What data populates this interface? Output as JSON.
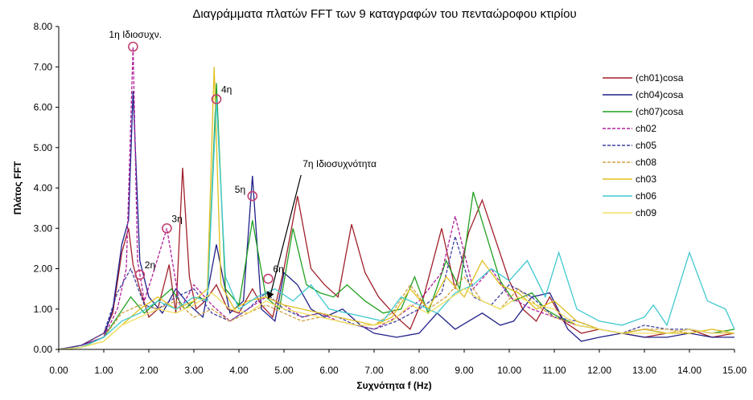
{
  "chart_data": {
    "type": "line",
    "title": "Διαγράμματα πλατών FFT των 9 καταγραφών του πενταώροφου κτιρίου",
    "xlabel": "Συχνότητα f (Hz)",
    "ylabel": "Πλάτος FFT",
    "xlim": [
      0,
      15
    ],
    "ylim": [
      0,
      8
    ],
    "x_ticks": [
      "0.00",
      "1.00",
      "2.00",
      "3.00",
      "4.00",
      "5.00",
      "6.00",
      "7.00",
      "8.00",
      "9.00",
      "10.00",
      "11.00",
      "12.00",
      "13.00",
      "14.00",
      "15.00"
    ],
    "y_ticks": [
      "0.00",
      "1.00",
      "2.00",
      "3.00",
      "4.00",
      "5.00",
      "6.00",
      "7.00",
      "8.00"
    ],
    "grid": false,
    "legend_position": "right",
    "series": [
      {
        "name": "(ch01)cosa",
        "color": "#a0202a",
        "dash": "solid",
        "x": [
          0,
          0.5,
          1,
          1.2,
          1.4,
          1.55,
          1.65,
          1.8,
          2.0,
          2.2,
          2.45,
          2.6,
          2.75,
          2.9,
          3.05,
          3.25,
          3.5,
          3.75,
          4.0,
          4.3,
          4.5,
          4.75,
          5.0,
          5.3,
          5.6,
          5.9,
          6.2,
          6.5,
          6.8,
          7.1,
          7.5,
          7.8,
          8.1,
          8.5,
          8.8,
          9.1,
          9.4,
          9.7,
          10.0,
          10.3,
          10.6,
          10.9,
          11.2,
          11.6,
          12.0,
          12.5,
          13.0,
          13.5,
          14.0,
          14.5,
          15.0
        ],
        "y": [
          0,
          0.1,
          0.4,
          0.9,
          2.4,
          3.0,
          2.1,
          1.5,
          0.8,
          1.0,
          2.1,
          0.9,
          4.5,
          1.8,
          1.0,
          1.2,
          1.6,
          1.0,
          0.9,
          1.5,
          1.1,
          0.8,
          2.0,
          3.8,
          2.0,
          1.6,
          1.3,
          3.1,
          1.9,
          1.3,
          0.8,
          0.5,
          1.3,
          3.0,
          1.5,
          2.9,
          3.7,
          2.7,
          1.7,
          1.0,
          0.7,
          1.3,
          0.7,
          0.4,
          0.5,
          0.4,
          0.3,
          0.4,
          0.5,
          0.3,
          0.4
        ]
      },
      {
        "name": "(ch04)cosa",
        "color": "#20208a",
        "dash": "solid",
        "x": [
          0,
          0.5,
          1,
          1.2,
          1.4,
          1.55,
          1.65,
          1.8,
          2.0,
          2.3,
          2.6,
          2.9,
          3.2,
          3.5,
          3.8,
          4.1,
          4.3,
          4.5,
          4.8,
          5.0,
          5.3,
          5.6,
          5.9,
          6.3,
          6.7,
          7.0,
          7.5,
          8.0,
          8.4,
          8.8,
          9.1,
          9.4,
          9.8,
          10.1,
          10.5,
          10.9,
          11.3,
          11.6,
          12.0,
          12.5,
          13.0,
          13.5,
          14.0,
          14.5,
          15.0
        ],
        "y": [
          0,
          0.1,
          0.3,
          1.0,
          2.6,
          3.2,
          6.4,
          2.2,
          1.3,
          0.9,
          1.5,
          1.1,
          0.8,
          2.6,
          0.9,
          1.2,
          4.3,
          1.0,
          0.7,
          1.9,
          1.6,
          1.0,
          0.8,
          1.0,
          0.6,
          0.4,
          0.3,
          0.4,
          0.9,
          0.5,
          0.7,
          0.9,
          0.6,
          0.7,
          1.3,
          1.4,
          0.5,
          0.2,
          0.3,
          0.4,
          0.3,
          0.3,
          0.4,
          0.3,
          0.3
        ]
      },
      {
        "name": "(ch07)cosa",
        "color": "#20a020",
        "dash": "solid",
        "x": [
          0,
          0.5,
          1,
          1.3,
          1.6,
          1.9,
          2.2,
          2.5,
          2.8,
          3.1,
          3.3,
          3.5,
          3.7,
          4.0,
          4.3,
          4.6,
          4.9,
          5.2,
          5.5,
          5.8,
          6.1,
          6.4,
          6.8,
          7.2,
          7.6,
          7.9,
          8.2,
          8.6,
          8.9,
          9.2,
          9.5,
          9.8,
          10.1,
          10.5,
          10.8,
          11.1,
          11.5,
          12.0,
          12.5,
          13.0,
          13.5,
          14.0,
          14.5,
          15.0
        ],
        "y": [
          0,
          0.05,
          0.3,
          0.8,
          1.3,
          0.9,
          1.2,
          1.5,
          1.0,
          1.3,
          1.2,
          6.6,
          1.5,
          1.1,
          3.2,
          1.3,
          1.0,
          3.0,
          1.6,
          1.4,
          1.3,
          1.6,
          1.2,
          0.9,
          1.0,
          1.8,
          0.9,
          2.2,
          1.5,
          3.9,
          2.8,
          1.7,
          1.2,
          1.4,
          1.0,
          0.8,
          0.6,
          0.5,
          0.4,
          0.5,
          0.4,
          0.5,
          0.4,
          0.5
        ]
      },
      {
        "name": "ch02",
        "color": "#b0209a",
        "dash": "4,2",
        "x": [
          0,
          0.5,
          1,
          1.3,
          1.5,
          1.65,
          1.75,
          1.9,
          2.1,
          2.4,
          2.7,
          3.0,
          3.4,
          3.8,
          4.2,
          4.6,
          5.0,
          5.4,
          5.8,
          6.2,
          6.6,
          7.0,
          7.5,
          8.0,
          8.5,
          8.8,
          9.2,
          9.6,
          10.0,
          10.5,
          11.0,
          11.5,
          12.0,
          12.5,
          13.0,
          13.5,
          14.0,
          14.5,
          15.0
        ],
        "y": [
          0,
          0.1,
          0.3,
          1.0,
          2.0,
          7.5,
          2.2,
          1.2,
          1.9,
          3.0,
          1.0,
          1.6,
          1.1,
          0.7,
          1.0,
          1.3,
          1.1,
          0.8,
          0.9,
          0.7,
          0.6,
          0.5,
          0.8,
          1.2,
          1.9,
          3.3,
          1.5,
          2.0,
          1.3,
          1.0,
          0.8,
          0.6,
          0.5,
          0.4,
          0.5,
          0.4,
          0.5,
          0.4,
          0.4
        ]
      },
      {
        "name": "ch05",
        "color": "#4040a0",
        "dash": "4,2",
        "x": [
          0,
          0.5,
          1,
          1.3,
          1.6,
          1.9,
          2.2,
          2.6,
          3.0,
          3.4,
          3.8,
          4.2,
          4.6,
          5.0,
          5.4,
          5.8,
          6.2,
          6.6,
          7.0,
          7.5,
          8.0,
          8.5,
          8.8,
          9.2,
          9.6,
          10.0,
          10.5,
          11.0,
          11.5,
          12.0,
          12.5,
          13.0,
          13.5,
          14.0,
          14.5,
          15.0
        ],
        "y": [
          0,
          0.1,
          0.4,
          1.4,
          2.0,
          1.1,
          1.0,
          1.3,
          1.5,
          0.9,
          0.7,
          1.0,
          1.4,
          1.0,
          0.8,
          0.9,
          0.8,
          0.6,
          0.5,
          0.7,
          1.0,
          1.4,
          2.8,
          1.3,
          1.1,
          1.6,
          1.3,
          0.8,
          0.7,
          0.5,
          0.4,
          0.6,
          0.5,
          0.5,
          0.4,
          0.4
        ]
      },
      {
        "name": "ch08",
        "color": "#d0a040",
        "dash": "4,2",
        "x": [
          0,
          0.5,
          1,
          1.4,
          1.8,
          2.2,
          2.6,
          3.0,
          3.4,
          3.8,
          4.2,
          4.6,
          5.0,
          5.4,
          5.8,
          6.2,
          6.6,
          7.0,
          7.4,
          7.8,
          8.2,
          8.6,
          9.0,
          9.4,
          9.8,
          10.2,
          10.6,
          11.0,
          11.5,
          12.0,
          12.5,
          13.0,
          13.5,
          14.0,
          14.5,
          15.0
        ],
        "y": [
          0,
          0.05,
          0.3,
          0.9,
          1.1,
          1.0,
          1.2,
          0.8,
          1.0,
          0.7,
          0.9,
          1.1,
          0.9,
          0.7,
          0.8,
          0.7,
          0.6,
          0.6,
          0.9,
          1.6,
          1.0,
          1.3,
          1.8,
          1.2,
          1.0,
          1.5,
          1.1,
          0.8,
          0.6,
          0.5,
          0.4,
          0.5,
          0.5,
          0.4,
          0.5,
          0.4
        ]
      },
      {
        "name": "ch03",
        "color": "#e0c020",
        "dash": "solid",
        "x": [
          0,
          0.5,
          1,
          1.4,
          1.8,
          2.2,
          2.6,
          3.0,
          3.3,
          3.45,
          3.6,
          3.9,
          4.2,
          4.6,
          5.0,
          5.4,
          5.8,
          6.2,
          6.6,
          7.0,
          7.4,
          7.8,
          8.2,
          8.6,
          9.0,
          9.4,
          9.8,
          10.2,
          10.6,
          11.0,
          11.5,
          12.0,
          12.5,
          13.0,
          13.5,
          14.0,
          14.5,
          15.0
        ],
        "y": [
          0,
          0.05,
          0.2,
          0.6,
          1.0,
          1.3,
          1.0,
          1.2,
          1.5,
          7.0,
          1.6,
          1.0,
          1.2,
          1.3,
          1.1,
          1.0,
          0.9,
          0.8,
          0.7,
          0.6,
          0.8,
          1.5,
          1.0,
          1.8,
          1.3,
          2.2,
          1.6,
          1.4,
          1.0,
          1.2,
          0.7,
          0.5,
          0.4,
          0.5,
          0.4,
          0.4,
          0.5,
          0.4
        ]
      },
      {
        "name": "ch06",
        "color": "#40c8d0",
        "dash": "solid",
        "x": [
          0,
          0.5,
          1,
          1.4,
          1.8,
          2.2,
          2.6,
          3.0,
          3.3,
          3.5,
          3.7,
          4.0,
          4.4,
          4.8,
          5.2,
          5.6,
          6.0,
          6.4,
          6.8,
          7.2,
          7.6,
          8.0,
          8.4,
          8.8,
          9.2,
          9.6,
          10.0,
          10.4,
          10.8,
          11.1,
          11.5,
          12.0,
          12.5,
          13.0,
          13.2,
          13.5,
          14.0,
          14.4,
          14.8,
          15.0
        ],
        "y": [
          0,
          0.05,
          0.3,
          0.7,
          0.9,
          1.2,
          1.0,
          1.3,
          1.2,
          6.2,
          1.8,
          1.0,
          1.3,
          1.5,
          1.2,
          1.6,
          1.0,
          0.9,
          0.8,
          0.7,
          1.3,
          1.1,
          0.9,
          1.4,
          1.6,
          2.0,
          1.7,
          2.2,
          1.3,
          2.4,
          1.0,
          0.7,
          0.6,
          0.8,
          1.1,
          0.6,
          2.4,
          1.2,
          1.0,
          0.5
        ]
      },
      {
        "name": "ch09",
        "color": "#f0e060",
        "dash": "solid",
        "x": [
          0,
          0.5,
          1,
          1.4,
          1.8,
          2.2,
          2.6,
          3.0,
          3.4,
          3.8,
          4.2,
          4.6,
          5.0,
          5.4,
          5.8,
          6.2,
          6.6,
          7.0,
          7.4,
          7.8,
          8.2,
          8.6,
          9.0,
          9.4,
          9.8,
          10.2,
          10.6,
          11.0,
          11.5,
          12.0,
          12.5,
          13.0,
          13.5,
          14.0,
          14.5,
          15.0
        ],
        "y": [
          0,
          0.05,
          0.2,
          0.6,
          0.8,
          1.0,
          0.9,
          1.1,
          1.4,
          1.0,
          0.9,
          1.2,
          1.0,
          0.9,
          0.8,
          0.7,
          0.6,
          0.6,
          0.7,
          1.1,
          0.9,
          1.2,
          1.5,
          1.2,
          1.0,
          1.3,
          1.1,
          1.0,
          0.6,
          0.5,
          0.4,
          0.4,
          0.4,
          0.5,
          0.4,
          0.4
        ]
      }
    ],
    "markers": [
      {
        "label": "1η Ιδιοσυχν.",
        "x": 1.65,
        "y": 7.5
      },
      {
        "label": "2η",
        "x": 1.8,
        "y": 1.85
      },
      {
        "label": "3η",
        "x": 2.4,
        "y": 3.0
      },
      {
        "label": "4η",
        "x": 3.5,
        "y": 6.2
      },
      {
        "label": "5η",
        "x": 4.3,
        "y": 3.8
      },
      {
        "label": "6η",
        "x": 4.65,
        "y": 1.75
      }
    ],
    "annotation": {
      "label": "7η Ιδιοσυχνότητα",
      "x": 4.65,
      "y": 1.25,
      "text_x": 5.2,
      "text_y": 4.4
    },
    "marker_color": "#c04070"
  }
}
